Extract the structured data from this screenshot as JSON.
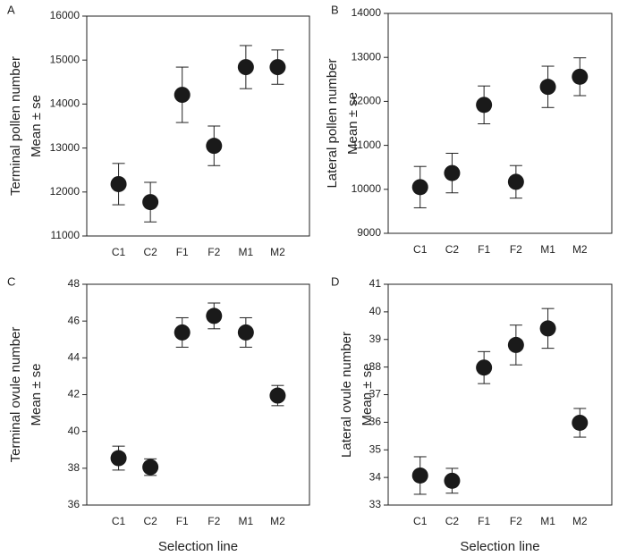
{
  "chart_data": [
    {
      "type": "errorbar",
      "panel": "A",
      "ylabel": [
        "Terminal pollen number",
        "Mean ± se"
      ],
      "categories": [
        "C1",
        "C2",
        "F1",
        "F2",
        "M1",
        "M2"
      ],
      "values": [
        12180,
        11770,
        14210,
        13050,
        14840,
        14840
      ],
      "errors": [
        470,
        450,
        630,
        450,
        490,
        390
      ],
      "ylim": [
        11000,
        16000
      ],
      "yticks": [
        11000,
        12000,
        13000,
        14000,
        15000,
        16000
      ],
      "color": "#1a1a1a"
    },
    {
      "type": "errorbar",
      "panel": "B",
      "ylabel": [
        "Lateral pollen number",
        "Mean ± se"
      ],
      "categories": [
        "C1",
        "C2",
        "F1",
        "F2",
        "M1",
        "M2"
      ],
      "values": [
        10050,
        10370,
        11920,
        10170,
        12330,
        12560
      ],
      "errors": [
        470,
        450,
        430,
        370,
        470,
        430
      ],
      "ylim": [
        9000,
        14000
      ],
      "yticks": [
        9000,
        10000,
        11000,
        12000,
        13000,
        14000
      ],
      "color": "#1a1a1a"
    },
    {
      "type": "errorbar",
      "panel": "C",
      "ylabel": [
        "Terminal ovule number",
        "Mean ± se"
      ],
      "xlabel": "Selection line",
      "categories": [
        "C1",
        "C2",
        "F1",
        "F2",
        "M1",
        "M2"
      ],
      "values": [
        38.55,
        38.06,
        45.38,
        46.28,
        45.38,
        41.95
      ],
      "errors": [
        0.65,
        0.45,
        0.8,
        0.7,
        0.8,
        0.55
      ],
      "ylim": [
        36,
        48
      ],
      "yticks": [
        36,
        38,
        40,
        42,
        44,
        46,
        48
      ],
      "color": "#1a1a1a"
    },
    {
      "type": "errorbar",
      "panel": "D",
      "ylabel": [
        "Lateral ovule number",
        "Mean ± se"
      ],
      "xlabel": "Selection line",
      "categories": [
        "C1",
        "C2",
        "F1",
        "F2",
        "M1",
        "M2"
      ],
      "values": [
        34.07,
        33.88,
        37.98,
        38.8,
        39.4,
        35.98
      ],
      "errors": [
        0.68,
        0.45,
        0.58,
        0.72,
        0.72,
        0.52
      ],
      "ylim": [
        33,
        41
      ],
      "yticks": [
        33,
        34,
        35,
        36,
        37,
        38,
        39,
        40,
        41
      ],
      "color": "#1a1a1a"
    }
  ]
}
